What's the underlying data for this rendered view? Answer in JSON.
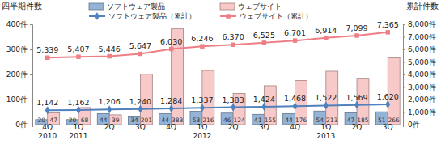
{
  "chart_data": {
    "type": "bar",
    "categories": [
      "4Q\n2010",
      "1Q\n2011",
      "2Q",
      "3Q",
      "4Q",
      "1Q\n2012",
      "2Q",
      "3Q",
      "4Q",
      "1Q\n2013",
      "2Q",
      "3Q"
    ],
    "y_label": "四半期件数",
    "y2_label": "累計件数",
    "ylim": [
      0,
      400
    ],
    "yticks": [
      {
        "value": 0,
        "label": "0件"
      },
      {
        "value": 100,
        "label": "100件"
      },
      {
        "value": 200,
        "label": "200件"
      },
      {
        "value": 300,
        "label": "300件"
      },
      {
        "value": 400,
        "label": "400件"
      }
    ],
    "y2lim": [
      0,
      8000
    ],
    "y2ticks": [
      {
        "value": 0,
        "label": "0件"
      },
      {
        "value": 1000,
        "label": "1,000件"
      },
      {
        "value": 2000,
        "label": "2,000件"
      },
      {
        "value": 3000,
        "label": "3,000件"
      },
      {
        "value": 4000,
        "label": "4,000件"
      },
      {
        "value": 5000,
        "label": "5,000件"
      },
      {
        "value": 6000,
        "label": "6,000件"
      },
      {
        "value": 7000,
        "label": "7,000件"
      },
      {
        "value": 8000,
        "label": "8,000件"
      }
    ],
    "series": [
      {
        "name": "ソフトウェア製品",
        "type": "bar",
        "color": "#95b3d7",
        "values": [
          20,
          20,
          44,
          34,
          44,
          53,
          46,
          41,
          44,
          54,
          47,
          51
        ]
      },
      {
        "name": "ウェブサイト",
        "type": "bar",
        "color": "#f7c9c9",
        "values": [
          47,
          68,
          39,
          201,
          383,
          216,
          124,
          155,
          176,
          213,
          185,
          266
        ]
      },
      {
        "name": "ソフトウェア製品（累計）",
        "type": "line",
        "axis": "y2",
        "color": "#4f81bd",
        "marker": "diamond",
        "values": [
          1142,
          1162,
          1206,
          1240,
          1284,
          1337,
          1383,
          1424,
          1468,
          1522,
          1569,
          1620
        ],
        "value_labels": [
          "1,142",
          "1,162",
          "1,206",
          "1,240",
          "1,284",
          "1,337",
          "1,383",
          "1,424",
          "1,468",
          "1,522",
          "1,569",
          "1,620"
        ]
      },
      {
        "name": "ウェブサイト（累計）",
        "type": "line",
        "axis": "y2",
        "color": "#ee7f86",
        "marker": "square",
        "values": [
          5339,
          5407,
          5446,
          5647,
          6030,
          6246,
          6370,
          6525,
          6701,
          6914,
          7099,
          7365
        ],
        "value_labels": [
          "5,339",
          "5,407",
          "5,446",
          "5,647",
          "6,030",
          "6,246",
          "6,370",
          "6,525",
          "6,701",
          "6,914",
          "7,099",
          "7,365"
        ]
      }
    ],
    "legend": "top",
    "data_labels": true,
    "grid": false
  }
}
